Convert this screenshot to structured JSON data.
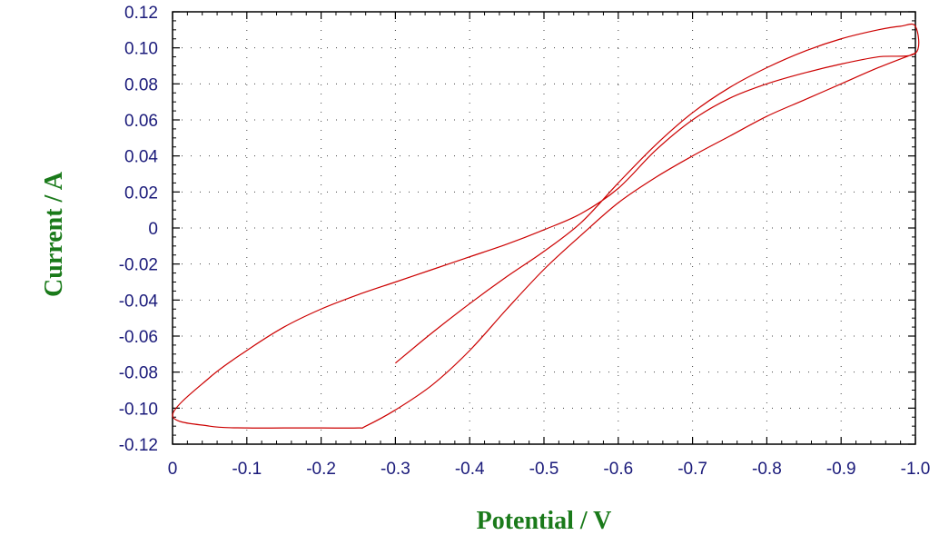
{
  "chart_data": {
    "type": "line",
    "title": "",
    "xlabel": "Potential / V",
    "ylabel": "Current / A",
    "xlim": [
      0,
      -1.0
    ],
    "ylim": [
      -0.12,
      0.12
    ],
    "x_ticks": [
      0,
      -0.1,
      -0.2,
      -0.3,
      -0.4,
      -0.5,
      -0.6,
      -0.7,
      -0.8,
      -0.9,
      -1.0
    ],
    "x_tick_labels": [
      "0",
      "-0.1",
      "-0.2",
      "-0.3",
      "-0.4",
      "-0.5",
      "-0.6",
      "-0.7",
      "-0.8",
      "-0.9",
      "-1.0"
    ],
    "y_ticks": [
      0.12,
      0.1,
      0.08,
      0.06,
      0.04,
      0.02,
      0,
      -0.02,
      -0.04,
      -0.06,
      -0.08,
      -0.1,
      -0.12
    ],
    "y_tick_labels": [
      "0.12",
      "0.10",
      "0.08",
      "0.06",
      "0.04",
      "0.02",
      "0",
      "-0.02",
      "-0.04",
      "-0.06",
      "-0.08",
      "-0.10",
      "-0.12"
    ],
    "grid": true,
    "line_color": "#cc0000",
    "axis_label_color": "#1a7a1a",
    "tick_label_color": "#1a1a7a",
    "series": [
      {
        "values": [
          [
            -0.3,
            -0.075
          ],
          [
            -0.35,
            -0.058
          ],
          [
            -0.4,
            -0.042
          ],
          [
            -0.45,
            -0.027
          ],
          [
            -0.5,
            -0.013
          ],
          [
            -0.55,
            0.003
          ],
          [
            -0.6,
            0.025
          ],
          [
            -0.65,
            0.046
          ],
          [
            -0.7,
            0.064
          ],
          [
            -0.75,
            0.078
          ],
          [
            -0.8,
            0.089
          ],
          [
            -0.85,
            0.098
          ],
          [
            -0.9,
            0.105
          ],
          [
            -0.95,
            0.11
          ],
          [
            -0.98,
            0.112
          ],
          [
            -1.0,
            0.112
          ],
          [
            -1.0,
            0.097
          ],
          [
            -0.95,
            0.095
          ],
          [
            -0.9,
            0.091
          ],
          [
            -0.85,
            0.086
          ],
          [
            -0.8,
            0.08
          ],
          [
            -0.75,
            0.072
          ],
          [
            -0.7,
            0.06
          ],
          [
            -0.65,
            0.043
          ],
          [
            -0.6,
            0.022
          ],
          [
            -0.55,
            0.008
          ],
          [
            -0.5,
            -0.001
          ],
          [
            -0.45,
            -0.009
          ],
          [
            -0.4,
            -0.016
          ],
          [
            -0.35,
            -0.023
          ],
          [
            -0.3,
            -0.03
          ],
          [
            -0.25,
            -0.037
          ],
          [
            -0.2,
            -0.045
          ],
          [
            -0.15,
            -0.055
          ],
          [
            -0.1,
            -0.068
          ],
          [
            -0.05,
            -0.083
          ],
          [
            0.0,
            -0.104
          ],
          [
            -0.05,
            -0.11
          ],
          [
            -0.1,
            -0.111
          ],
          [
            -0.15,
            -0.111
          ],
          [
            -0.2,
            -0.111
          ],
          [
            -0.25,
            -0.111
          ],
          [
            -0.26,
            -0.11
          ],
          [
            -0.3,
            -0.101
          ],
          [
            -0.35,
            -0.087
          ],
          [
            -0.4,
            -0.068
          ],
          [
            -0.45,
            -0.045
          ],
          [
            -0.5,
            -0.023
          ],
          [
            -0.55,
            -0.004
          ],
          [
            -0.6,
            0.014
          ],
          [
            -0.65,
            0.028
          ],
          [
            -0.7,
            0.04
          ],
          [
            -0.75,
            0.051
          ],
          [
            -0.8,
            0.062
          ],
          [
            -0.85,
            0.071
          ],
          [
            -0.9,
            0.08
          ],
          [
            -0.95,
            0.089
          ],
          [
            -1.0,
            0.097
          ]
        ]
      }
    ]
  }
}
